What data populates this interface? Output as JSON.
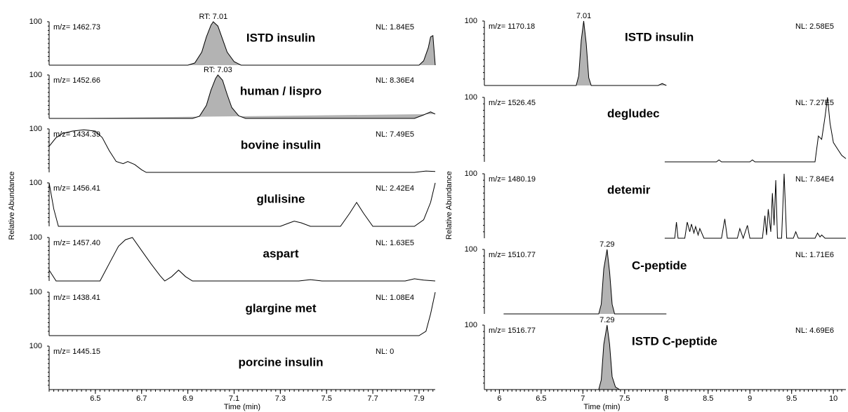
{
  "chart_data": [
    {
      "type": "line",
      "ylabel": "Relative Abundance",
      "xlabel": "Time (min)",
      "xlim": [
        6.3,
        7.97
      ],
      "xticks": [
        6.5,
        6.7,
        6.9,
        7.1,
        7.3,
        7.5,
        7.7,
        7.9
      ],
      "ylim": [
        0,
        100
      ],
      "yticks": [
        100
      ],
      "color": "#000000",
      "fill": "#b3b3b3",
      "panels": [
        {
          "title": "ISTD insulin",
          "mz": "m/z= 1462.73",
          "nl": "NL: 1.84E5",
          "peak_label": "RT: 7.01",
          "filled": true,
          "x": [
            6.3,
            6.9,
            6.93,
            6.96,
            6.98,
            7.0,
            7.01,
            7.03,
            7.05,
            7.07,
            7.1,
            7.13,
            7.8,
            7.9,
            7.92,
            7.94,
            7.95,
            7.96,
            7.97
          ],
          "values": [
            0,
            0,
            5,
            30,
            65,
            92,
            100,
            90,
            60,
            30,
            8,
            0,
            0,
            0,
            10,
            40,
            65,
            68,
            0
          ]
        },
        {
          "title": "human / lispro",
          "mz": "m/z= 1452.66",
          "nl": "NL: 8.36E4",
          "peak_label": "RT: 7.03",
          "filled": true,
          "x": [
            6.3,
            6.92,
            6.95,
            6.98,
            7.0,
            7.02,
            7.03,
            7.05,
            7.07,
            7.09,
            7.12,
            7.15,
            7.88,
            7.92,
            7.95,
            7.97
          ],
          "values": [
            0,
            0,
            5,
            30,
            65,
            92,
            100,
            88,
            55,
            25,
            6,
            0,
            0,
            8,
            15,
            10
          ]
        },
        {
          "title": "bovine insulin",
          "mz": "m/z= 1434.39",
          "nl": "NL: 7.49E5",
          "filled": false,
          "x": [
            6.3,
            6.33,
            6.36,
            6.4,
            6.45,
            6.5,
            6.53,
            6.56,
            6.59,
            6.62,
            6.64,
            6.67,
            6.7,
            6.72,
            7.88,
            7.93,
            7.97
          ],
          "values": [
            60,
            80,
            90,
            95,
            98,
            95,
            80,
            50,
            25,
            20,
            25,
            18,
            6,
            0,
            0,
            3,
            2
          ]
        },
        {
          "title": "glulisine",
          "mz": "m/z= 1456.41",
          "nl": "NL: 2.42E4",
          "filled": false,
          "x": [
            6.3,
            6.32,
            6.34,
            7.3,
            7.34,
            7.36,
            7.39,
            7.43,
            7.56,
            7.6,
            7.63,
            7.66,
            7.7,
            7.88,
            7.92,
            7.95,
            7.97
          ],
          "values": [
            100,
            40,
            0,
            0,
            8,
            12,
            8,
            0,
            0,
            30,
            55,
            30,
            0,
            0,
            15,
            55,
            100
          ]
        },
        {
          "title": "aspart",
          "mz": "m/z= 1457.40",
          "nl": "NL: 1.63E5",
          "filled": false,
          "x": [
            6.3,
            6.33,
            6.52,
            6.56,
            6.6,
            6.63,
            6.66,
            6.7,
            6.74,
            6.78,
            6.8,
            6.83,
            6.86,
            6.89,
            6.92,
            7.38,
            7.43,
            7.48,
            7.84,
            7.88,
            7.92,
            7.97
          ],
          "values": [
            25,
            0,
            0,
            40,
            80,
            95,
            100,
            70,
            40,
            12,
            0,
            10,
            25,
            10,
            0,
            0,
            3,
            0,
            0,
            5,
            2,
            0
          ]
        },
        {
          "title": "glargine met",
          "mz": "m/z= 1438.41",
          "nl": "NL: 1.08E4",
          "filled": false,
          "x": [
            6.3,
            7.9,
            7.93,
            7.95,
            7.97
          ],
          "values": [
            0,
            0,
            10,
            50,
            100
          ]
        },
        {
          "title": "porcine insulin",
          "mz": "m/z= 1445.15",
          "nl": "NL: 0",
          "filled": false,
          "x": [
            6.3,
            7.97
          ],
          "values": [
            0,
            0
          ]
        }
      ]
    },
    {
      "type": "line",
      "ylabel": "Relative Abundance",
      "xlabel": "Time (min)",
      "xlim": [
        5.82,
        10.15
      ],
      "xticks": [
        6.0,
        6.5,
        7.0,
        7.5,
        8.0,
        8.5,
        9.0,
        9.5,
        10.0
      ],
      "ylim": [
        0,
        100
      ],
      "yticks": [
        100
      ],
      "color": "#000000",
      "fill": "#b3b3b3",
      "panels": [
        {
          "title": "ISTD insulin",
          "mz": "m/z= 1170.18",
          "nl": "NL: 2.58E5",
          "peak_label": "7.01",
          "filled": true,
          "x": [
            5.82,
            6.92,
            6.95,
            6.98,
            7.01,
            7.04,
            7.07,
            7.1,
            7.9,
            7.95,
            8.0
          ],
          "values": [
            0,
            0,
            15,
            70,
            100,
            65,
            12,
            0,
            0,
            3,
            0
          ]
        },
        {
          "title": "degludec",
          "mz": "m/z= 1526.45",
          "nl": "NL: 7.27E5",
          "filled": false,
          "x": [
            7.98,
            8.6,
            8.63,
            8.66,
            8.9,
            9.0,
            9.03,
            9.06,
            9.5,
            9.78,
            9.82,
            9.86,
            9.9,
            9.93,
            9.96,
            10.0,
            10.05,
            10.1,
            10.15
          ],
          "values": [
            0,
            0,
            3,
            0,
            0,
            0,
            3,
            0,
            0,
            0,
            40,
            35,
            70,
            100,
            60,
            30,
            20,
            10,
            5
          ]
        },
        {
          "title": "detemir",
          "mz": "m/z= 1480.19",
          "nl": "NL: 7.84E4",
          "filled": false,
          "x": [
            7.98,
            8.1,
            8.12,
            8.14,
            8.22,
            8.25,
            8.28,
            8.3,
            8.33,
            8.35,
            8.38,
            8.4,
            8.45,
            8.66,
            8.7,
            8.73,
            8.85,
            8.88,
            8.92,
            8.97,
            9.0,
            9.15,
            9.18,
            9.2,
            9.22,
            9.25,
            9.27,
            9.29,
            9.31,
            9.33,
            9.38,
            9.41,
            9.44,
            9.52,
            9.55,
            9.58,
            9.78,
            9.81,
            9.84,
            9.86,
            9.9,
            10.15
          ],
          "values": [
            0,
            0,
            25,
            0,
            0,
            25,
            10,
            22,
            8,
            18,
            5,
            15,
            0,
            0,
            30,
            0,
            0,
            15,
            0,
            20,
            0,
            0,
            35,
            5,
            45,
            10,
            70,
            20,
            90,
            0,
            0,
            100,
            0,
            0,
            10,
            0,
            0,
            8,
            2,
            5,
            0,
            0
          ]
        },
        {
          "title": "C-peptide",
          "mz": "m/z= 1510.77",
          "nl": "NL: 1.71E6",
          "peak_label": "7.29",
          "filled": true,
          "x": [
            6.05,
            7.19,
            7.22,
            7.25,
            7.29,
            7.32,
            7.35,
            7.38,
            8.0
          ],
          "values": [
            0,
            0,
            15,
            70,
            100,
            65,
            15,
            0,
            0
          ]
        },
        {
          "title": "ISTD C-peptide",
          "mz": "m/z= 1516.77",
          "nl": "NL: 4.69E6",
          "peak_label": "7.29",
          "filled": true,
          "x": [
            7.12,
            7.19,
            7.22,
            7.25,
            7.29,
            7.32,
            7.35,
            7.39,
            7.44
          ],
          "values": [
            0,
            0,
            15,
            70,
            100,
            70,
            20,
            4,
            0
          ]
        }
      ]
    }
  ]
}
